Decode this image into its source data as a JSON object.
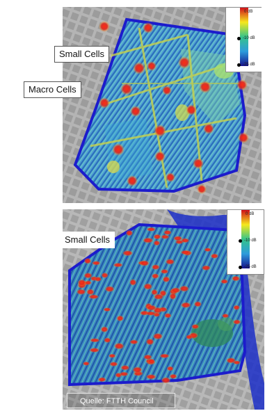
{
  "top_map": {
    "labels": {
      "small_cells": "Small Cells",
      "macro_cells": "Macro Cells"
    },
    "legend": {
      "max": "0 dB",
      "mid": "-10 dB",
      "min": "-25 dB"
    }
  },
  "bottom_map": {
    "labels": {
      "small_cells": "Small Cells"
    },
    "legend": {
      "max": "0 dB",
      "mid": "-10 dB",
      "min": "-25 dB"
    }
  },
  "credit": "Quelle: FTTH Council",
  "colors": {
    "boundary": "#1c1ccc",
    "cell_hotspot": "#e0281e",
    "street_base": "#d9d9d9",
    "block_base": "#a8a8a8"
  }
}
